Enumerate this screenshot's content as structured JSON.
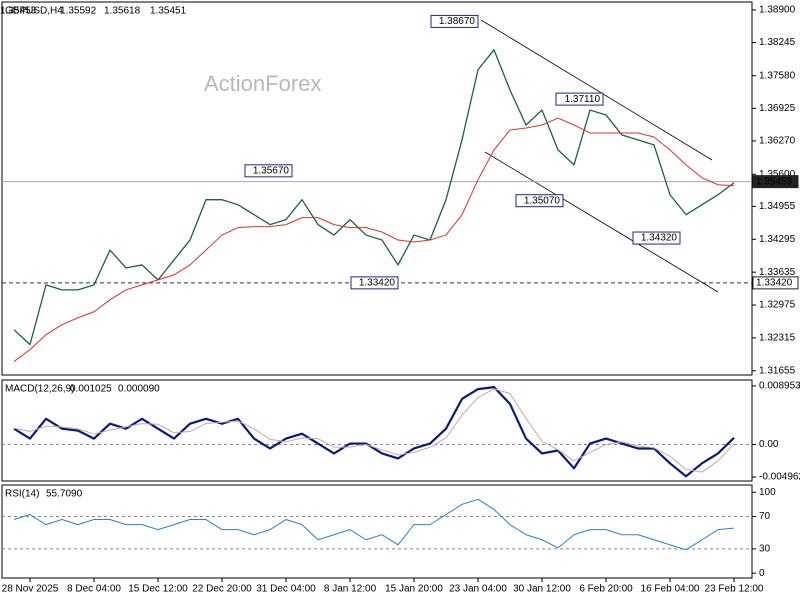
{
  "chart_data": [
    {
      "type": "line",
      "title": "GBPUSD,H4",
      "watermark": "ActionForex",
      "ohlc": [
        1.35592,
        1.35618,
        1.35451,
        1.35453
      ],
      "ylim": [
        1.3157,
        1.3906
      ],
      "yticks": [
        {
          "value": 1.389,
          "label": "1.38900"
        },
        {
          "value": 1.38245,
          "label": "1.38245"
        },
        {
          "value": 1.3758,
          "label": "1.37580"
        },
        {
          "value": 1.36925,
          "label": "1.36925"
        },
        {
          "value": 1.3627,
          "label": "1.36270"
        },
        {
          "value": 1.356,
          "label": "1.35600"
        },
        {
          "value": 1.34955,
          "label": "1.34955"
        },
        {
          "value": 1.34295,
          "label": "1.34295"
        },
        {
          "value": 1.33635,
          "label": "1.33635"
        },
        {
          "value": 1.32975,
          "label": "1.32975"
        },
        {
          "value": 1.32315,
          "label": "1.32315"
        },
        {
          "value": 1.31655,
          "label": "1.31655"
        }
      ],
      "levels": [
        1.35453,
        {
          "value": 1.3342,
          "label": "1.33420"
        }
      ],
      "level_styles": [
        "solid",
        "dashed"
      ],
      "annotations": [
        {
          "value": 1.3867,
          "label": "1.38670"
        },
        {
          "value": 1.3567,
          "label": "1.35670"
        },
        {
          "value": 1.3342,
          "label": "1.33420"
        },
        {
          "value": 1.3711,
          "label": "1.37110"
        },
        {
          "value": 1.3507,
          "label": "1.35070"
        },
        {
          "value": 1.3432,
          "label": "1.34320"
        }
      ],
      "series": [
        {
          "color": "#1f5f3f",
          "width": 1.3,
          "values": [
            1.3248,
            1.3218,
            1.3338,
            1.3328,
            1.3328,
            1.3338,
            1.3408,
            1.3372,
            1.3378,
            1.3348,
            1.3388,
            1.3428,
            1.3509,
            1.3509,
            1.3499,
            1.3479,
            1.3459,
            1.3469,
            1.3509,
            1.3459,
            1.3438,
            1.3469,
            1.3438,
            1.3428,
            1.3378,
            1.3438,
            1.3428,
            1.3509,
            1.3629,
            1.377,
            1.381,
            1.3729,
            1.3659,
            1.3689,
            1.3609,
            1.3579,
            1.3689,
            1.3679,
            1.3639,
            1.3629,
            1.3619,
            1.3519,
            1.3479,
            1.3499,
            1.3519,
            1.3543
          ]
        },
        {
          "color": "#e03030",
          "width": 1,
          "values": [
            1.3184,
            1.3208,
            1.3238,
            1.3258,
            1.3272,
            1.3284,
            1.3308,
            1.3328,
            1.3338,
            1.3348,
            1.3358,
            1.3378,
            1.3408,
            1.3438,
            1.3453,
            1.3455,
            1.3455,
            1.3459,
            1.3473,
            1.3473,
            1.3459,
            1.3453,
            1.3453,
            1.3444,
            1.3428,
            1.3424,
            1.3428,
            1.3438,
            1.3479,
            1.3549,
            1.3609,
            1.3649,
            1.3653,
            1.3659,
            1.3673,
            1.3659,
            1.3643,
            1.3643,
            1.3643,
            1.3643,
            1.3635,
            1.3609,
            1.3579,
            1.3553,
            1.3539,
            1.3537
          ]
        }
      ]
    },
    {
      "type": "line",
      "title": "MACD(12,26,9)",
      "readout": [
        0.001025,
        {
          "value": 9e-05,
          "label": "0.000090"
        }
      ],
      "ylim": [
        -0.00557,
        0.00986
      ],
      "yticks": [
        0.008953,
        {
          "value": 0,
          "label": "0.00"
        },
        -0.004962
      ],
      "reference_lines": [
        0
      ],
      "series": [
        {
          "color": "#0a1a7a",
          "width": 2.2,
          "values": [
            0.00242,
            0.00091,
            0.00393,
            0.00242,
            0.00212,
            0.00091,
            0.00318,
            0.00242,
            0.00393,
            0.00242,
            0.00091,
            0.00318,
            0.00393,
            0.00318,
            0.00393,
            0.00091,
            -0.0006,
            0.00091,
            0.00166,
            0.00015,
            -0.00136,
            0.00015,
            0.00015,
            -0.00136,
            -0.00212,
            -0.0006,
            0.00015,
            0.00242,
            0.00696,
            0.00847,
            0.00877,
            0.0062,
            0.00091,
            -0.00136,
            -0.00091,
            -0.00363,
            0.00015,
            0.00091,
            0.00015,
            -0.0006,
            -0.0006,
            -0.00287,
            -0.00484,
            -0.00287,
            -0.00136,
            0.001025
          ]
        },
        {
          "color": "#c9a8a8",
          "width": 1,
          "values": [
            0.0025,
            0.002,
            0.0028,
            0.0027,
            0.0024,
            0.0016,
            0.0022,
            0.0027,
            0.0032,
            0.0031,
            0.0018,
            0.002,
            0.0032,
            0.0034,
            0.0036,
            0.0024,
            0.0008,
            0.0004,
            0.001,
            0.0009,
            -0.0004,
            -0.0004,
            0,
            -0.0008,
            -0.0016,
            -0.0012,
            -0.0004,
            0.001,
            0.0045,
            0.0072,
            0.0085,
            0.0078,
            0.004,
            0.0005,
            -0.0008,
            -0.0025,
            -0.0012,
            0,
            0.0004,
            -0.0002,
            -0.0005,
            -0.0018,
            -0.0038,
            -0.0042,
            -0.0025,
            9e-05
          ]
        }
      ]
    },
    {
      "type": "line",
      "title": "RSI(14)",
      "readout": [
        {
          "value": 55.709,
          "label": "55.7090"
        }
      ],
      "ylim": [
        -6,
        109
      ],
      "yticks": [
        100,
        70,
        30,
        0
      ],
      "reference_lines": [
        70,
        30
      ],
      "categories": [
        null,
        "28 Nov 2025",
        null,
        null,
        null,
        "8 Dec 04:00",
        null,
        null,
        null,
        "15 Dec 12:00",
        null,
        null,
        null,
        "22 Dec 20:00",
        null,
        null,
        null,
        "31 Dec 04:00",
        null,
        null,
        null,
        "8 Jan 12:00",
        null,
        null,
        null,
        "15 Jan 20:00",
        null,
        null,
        null,
        "23 Jan 04:00",
        null,
        null,
        null,
        "30 Jan 12:00",
        null,
        null,
        null,
        "6 Feb 20:00",
        null,
        null,
        null,
        "16 Feb 04:00",
        null,
        null,
        null,
        "23 Feb 12:00"
      ],
      "series": [
        {
          "color": "#2f7fd0",
          "width": 1,
          "values": [
            66.3,
            72.5,
            60,
            66.3,
            60,
            66.3,
            66.3,
            60,
            60,
            53.8,
            60,
            66.3,
            66.3,
            53.8,
            53.8,
            47.5,
            53.8,
            66.3,
            60,
            41.3,
            47.5,
            53.8,
            41.3,
            47.5,
            35,
            60,
            60,
            72.5,
            85,
            91.3,
            78.8,
            60,
            47.5,
            41.3,
            31.3,
            47.5,
            53.8,
            53.8,
            47.5,
            47.5,
            41.3,
            35,
            28.8,
            41.3,
            53.8,
            55.709
          ]
        }
      ]
    }
  ]
}
